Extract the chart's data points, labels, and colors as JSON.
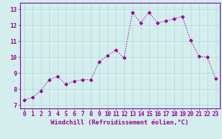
{
  "x": [
    0,
    1,
    2,
    3,
    4,
    5,
    6,
    7,
    8,
    9,
    10,
    11,
    12,
    13,
    14,
    15,
    16,
    17,
    18,
    19,
    20,
    21,
    22,
    23
  ],
  "y": [
    7.3,
    7.5,
    7.9,
    8.6,
    8.8,
    8.3,
    8.5,
    8.6,
    8.6,
    9.7,
    10.1,
    10.45,
    9.95,
    12.8,
    12.15,
    12.8,
    12.15,
    12.25,
    12.4,
    12.55,
    11.05,
    10.05,
    10.0,
    8.65
  ],
  "xlabel": "Windchill (Refroidissement éolien,°C)",
  "xticks": [
    0,
    1,
    2,
    3,
    4,
    5,
    6,
    7,
    8,
    9,
    10,
    11,
    12,
    13,
    14,
    15,
    16,
    17,
    18,
    19,
    20,
    21,
    22,
    23
  ],
  "yticks": [
    7,
    8,
    9,
    10,
    11,
    12,
    13
  ],
  "ylim": [
    6.8,
    13.4
  ],
  "xlim": [
    -0.5,
    23.5
  ],
  "line_color": "#990099",
  "marker": "D",
  "marker_size": 2.5,
  "bg_color": "#d4eeee",
  "grid_color": "#b0d8d8",
  "tick_color": "#990099",
  "label_color": "#990099",
  "xlabel_fontsize": 6.5,
  "tick_fontsize": 6.0,
  "line_width": 0.9,
  "spine_color": "#7700aa"
}
